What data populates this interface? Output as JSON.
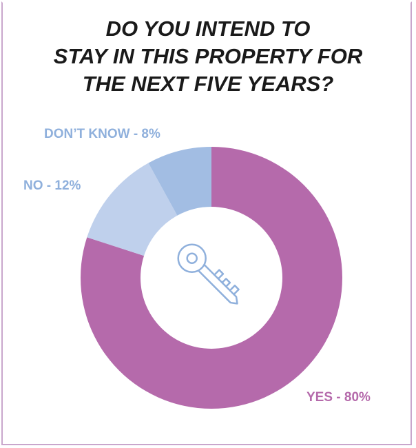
{
  "title": {
    "lines": [
      "DO YOU INTEND TO",
      "STAY IN THIS PROPERTY FOR",
      "THE NEXT FIVE YEARS?"
    ]
  },
  "chart_data": {
    "type": "pie",
    "style": "donut",
    "title": "DO YOU INTEND TO STAY IN THIS PROPERTY FOR THE NEXT FIVE YEARS?",
    "slices": [
      {
        "label": "YES",
        "value": 80,
        "display": "YES - 80%",
        "color": "#b56aab"
      },
      {
        "label": "NO",
        "value": 12,
        "display": "NO - 12%",
        "color": "#bfd0ec"
      },
      {
        "label": "DON’T KNOW",
        "value": 8,
        "display": "DON’T KNOW - 8%",
        "color": "#a2bde3"
      }
    ],
    "center_icon": "key-icon",
    "label_colors": {
      "yes": "#b56aab",
      "no": "#8fb0dc",
      "dont_know": "#8fb0dc"
    }
  }
}
